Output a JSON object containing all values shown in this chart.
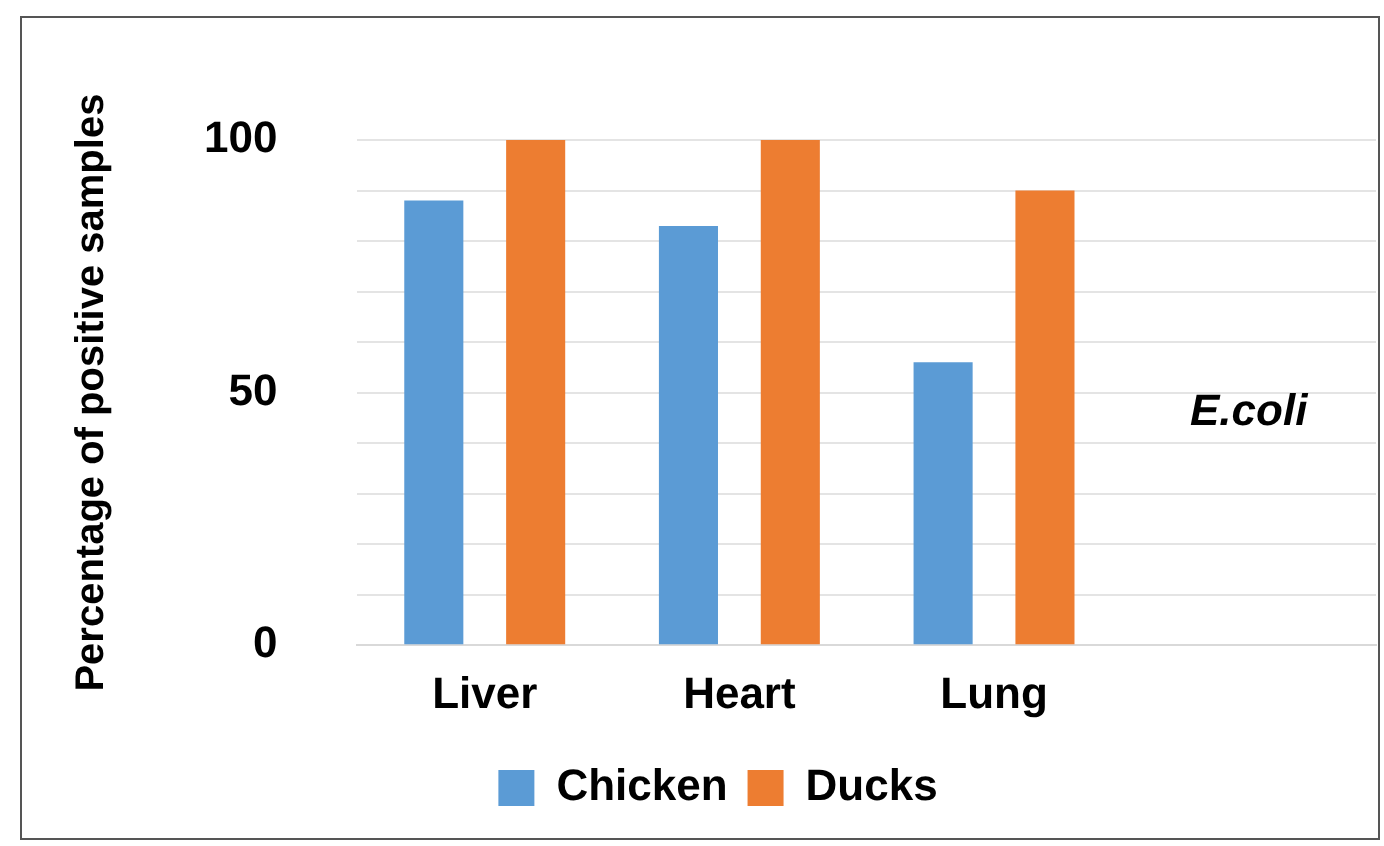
{
  "chart_data": {
    "type": "bar",
    "ylabel": "Percentage of positive samples",
    "categories": [
      "Liver",
      "Heart",
      "Lung",
      null
    ],
    "series": [
      {
        "name": "Chicken",
        "color": "#5b9bd5",
        "values": [
          88,
          83,
          56,
          null
        ]
      },
      {
        "name": "Ducks",
        "color": "#ed7d31",
        "values": [
          100,
          100,
          90,
          null
        ]
      }
    ],
    "ylim": [
      0,
      100
    ],
    "yticks": [
      0,
      {
        "value": 10,
        "label": null
      },
      {
        "value": 20,
        "label": null
      },
      {
        "value": 30,
        "label": null
      },
      {
        "value": 40,
        "label": null
      },
      50,
      {
        "value": 60,
        "label": null
      },
      {
        "value": 70,
        "label": null
      },
      {
        "value": 80,
        "label": null
      },
      {
        "value": 90,
        "label": null
      },
      100
    ],
    "grid": true,
    "legend": "bottom",
    "annotations": [
      "E.coli"
    ]
  }
}
